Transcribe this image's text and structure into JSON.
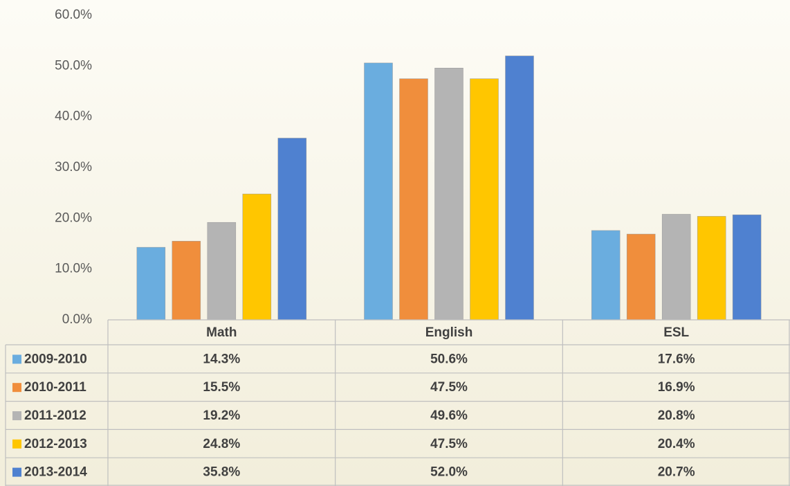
{
  "chart_data": {
    "type": "bar",
    "categories": [
      "Math",
      "English",
      "ESL"
    ],
    "series": [
      {
        "name": "2009-2010",
        "color": "#6aaddf",
        "values": [
          14.3,
          50.6,
          17.6
        ],
        "value_labels": [
          "14.3%",
          "50.6%",
          "17.6%"
        ]
      },
      {
        "name": "2010-2011",
        "color": "#f08e3c",
        "values": [
          15.5,
          47.5,
          16.9
        ],
        "value_labels": [
          "15.5%",
          "47.5%",
          "16.9%"
        ]
      },
      {
        "name": "2011-2012",
        "color": "#b4b4b4",
        "values": [
          19.2,
          49.6,
          20.8
        ],
        "value_labels": [
          "19.2%",
          "49.6%",
          "20.8%"
        ]
      },
      {
        "name": "2012-2013",
        "color": "#ffc600",
        "values": [
          24.8,
          47.5,
          20.4
        ],
        "value_labels": [
          "24.8%",
          "47.5%",
          "20.4%"
        ]
      },
      {
        "name": "2013-2014",
        "color": "#4f81d0",
        "values": [
          35.8,
          52.0,
          20.7
        ],
        "value_labels": [
          "35.8%",
          "52.0%",
          "20.7%"
        ]
      }
    ],
    "ylim": [
      0,
      60
    ],
    "yticks": [
      {
        "value": 0,
        "label": "0.0%"
      },
      {
        "value": 10,
        "label": "10.0%"
      },
      {
        "value": 20,
        "label": "20.0%"
      },
      {
        "value": 30,
        "label": "30.0%"
      },
      {
        "value": 40,
        "label": "40.0%"
      },
      {
        "value": 50,
        "label": "50.0%"
      },
      {
        "value": 60,
        "label": "60.0%"
      }
    ],
    "grid": false
  }
}
